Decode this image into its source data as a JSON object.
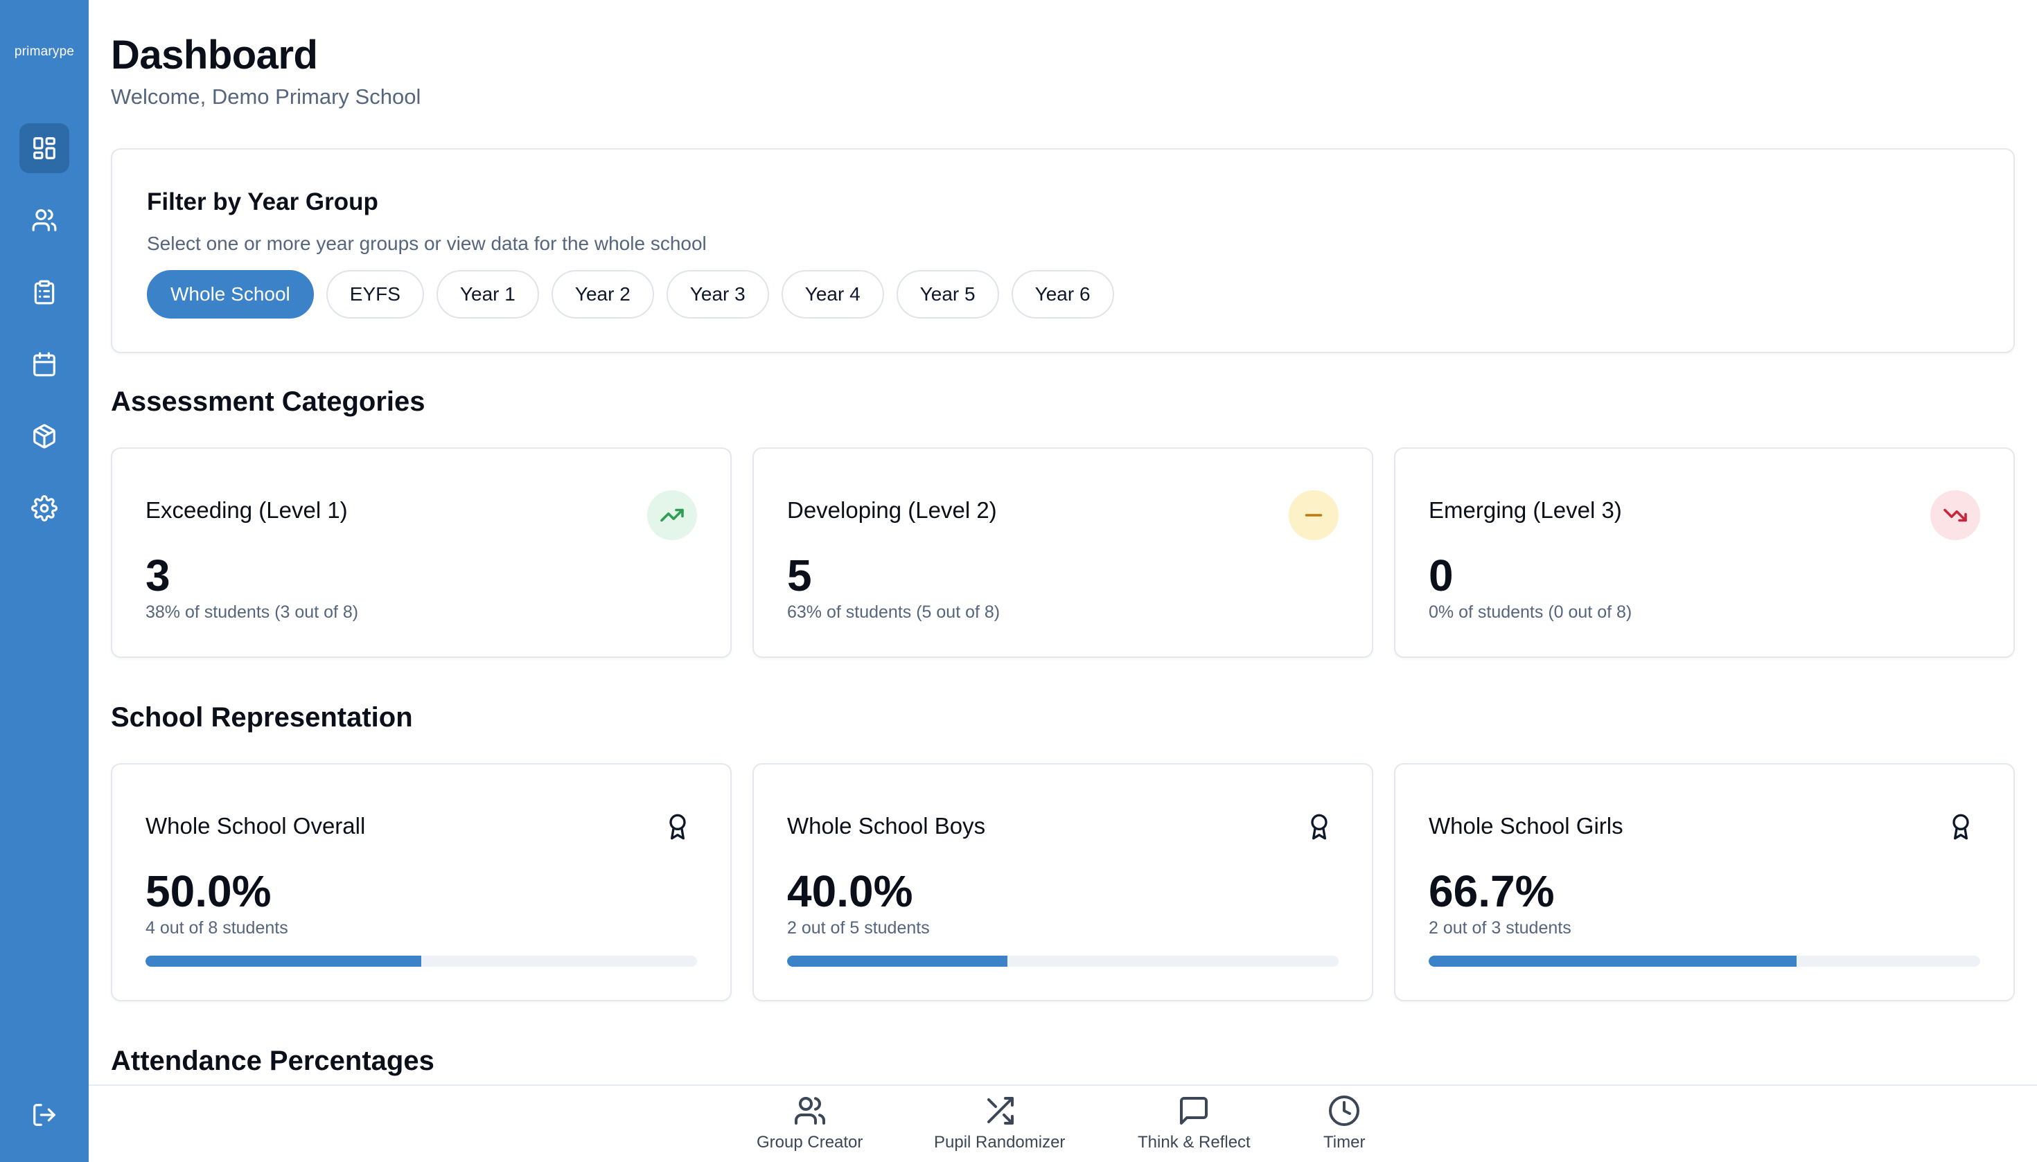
{
  "sidebar": {
    "logo": "primarype",
    "items": [
      {
        "name": "dashboard",
        "icon": "layout-grid-icon",
        "active": true
      },
      {
        "name": "users",
        "icon": "users-icon",
        "active": false
      },
      {
        "name": "assessments",
        "icon": "clipboard-icon",
        "active": false
      },
      {
        "name": "calendar",
        "icon": "calendar-icon",
        "active": false
      },
      {
        "name": "resources",
        "icon": "package-icon",
        "active": false
      },
      {
        "name": "settings",
        "icon": "gear-icon",
        "active": false
      }
    ],
    "logout_icon": "logout-icon"
  },
  "header": {
    "title": "Dashboard",
    "welcome": "Welcome, Demo Primary School"
  },
  "filter": {
    "title": "Filter by Year Group",
    "subtitle": "Select one or more year groups or view data for the whole school",
    "options": [
      "Whole School",
      "EYFS",
      "Year 1",
      "Year 2",
      "Year 3",
      "Year 4",
      "Year 5",
      "Year 6"
    ],
    "selected": "Whole School"
  },
  "assessment": {
    "title": "Assessment Categories",
    "cards": [
      {
        "label": "Exceeding (Level 1)",
        "value": "3",
        "detail": "38% of students (3 out of 8)",
        "icon": "trending-up-icon",
        "color": "#2f9e55",
        "bg": "#e3f6e9"
      },
      {
        "label": "Developing (Level 2)",
        "value": "5",
        "detail": "63% of students (5 out of 8)",
        "icon": "minus-icon",
        "color": "#c07a12",
        "bg": "#fdf1c8"
      },
      {
        "label": "Emerging (Level 3)",
        "value": "0",
        "detail": "0% of students (0 out of 8)",
        "icon": "trending-down-icon",
        "color": "#c5283d",
        "bg": "#fbe3e6"
      }
    ]
  },
  "representation": {
    "title": "School Representation",
    "cards": [
      {
        "label": "Whole School Overall",
        "value": "50.0%",
        "detail": "4 out of 8 students",
        "progress": 0.5,
        "icon": "award-icon"
      },
      {
        "label": "Whole School Boys",
        "value": "40.0%",
        "detail": "2 out of 5 students",
        "progress": 0.4,
        "icon": "award-icon"
      },
      {
        "label": "Whole School Girls",
        "value": "66.7%",
        "detail": "2 out of 3 students",
        "progress": 0.667,
        "icon": "award-icon"
      }
    ]
  },
  "attendance": {
    "title": "Attendance Percentages"
  },
  "bottom_bar": {
    "tools": [
      {
        "label": "Group Creator",
        "icon": "users-icon"
      },
      {
        "label": "Pupil Randomizer",
        "icon": "shuffle-icon"
      },
      {
        "label": "Think & Reflect",
        "icon": "message-square-icon"
      },
      {
        "label": "Timer",
        "icon": "clock-icon"
      }
    ]
  }
}
